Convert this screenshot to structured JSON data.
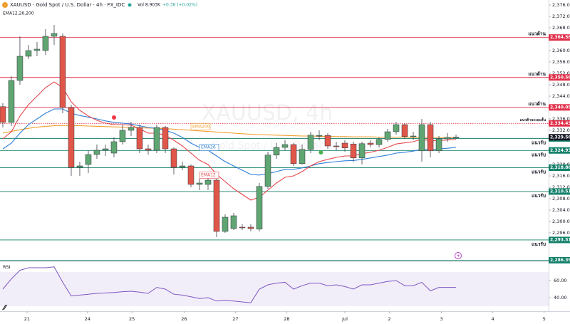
{
  "header": {
    "symbol": "XAUUSD · Gold Spot / U.S. Dollar · 4h · FX_IDC",
    "volume": "Vol 8.903K",
    "change": "+0.36 (+0.02%)",
    "indicators": "EMA12,26,200",
    "watermark": "XAUUSD, 4h",
    "watermark_sub": "Gold Spot / U.S. Dollar"
  },
  "chart_data": [
    {
      "type": "candlestick",
      "x": [
        0,
        1,
        2,
        3,
        4,
        5,
        6,
        7,
        8,
        9,
        10,
        11,
        12,
        13,
        14,
        15,
        16,
        17,
        18,
        19,
        20,
        21,
        22,
        23,
        24,
        25,
        26,
        27,
        28,
        29,
        30,
        31,
        32,
        33,
        34,
        35,
        36,
        37,
        38,
        39,
        40,
        41,
        42,
        43,
        44,
        45,
        46,
        47,
        48,
        49,
        50,
        51,
        52,
        53
      ],
      "open": [
        2340.3,
        2334.8,
        2349.5,
        2358,
        2360,
        2360,
        2365,
        2365,
        2340,
        2319,
        2320,
        2323.5,
        2325,
        2324,
        2328,
        2332,
        2333,
        2325.5,
        2325,
        2333,
        2325.5,
        2319,
        2319.5,
        2313,
        2313,
        2314.5,
        2296.5,
        2297.5,
        2298,
        2298,
        2297.3,
        2312.3,
        2323.3,
        2326,
        2327,
        2320.3,
        2325.3,
        2330,
        2330.2,
        2326.5,
        2327.5,
        2327.2,
        2322.3,
        2327.5,
        2327,
        2328.8,
        2331.5,
        2334,
        2329.8,
        2324.8,
        2334,
        2324.8,
        2329,
        2329.5
      ],
      "high": [
        2341.5,
        2351,
        2365,
        2362,
        2363,
        2367.5,
        2369,
        2366,
        2341,
        2321,
        2325,
        2327,
        2327,
        2329.5,
        2334,
        2335,
        2334,
        2327,
        2334,
        2333.5,
        2326,
        2321,
        2320,
        2315,
        2317,
        2315,
        2302.5,
        2303,
        2299,
        2299,
        2313.5,
        2324.5,
        2327.5,
        2328.5,
        2327.5,
        2327,
        2331.5,
        2332,
        2331,
        2328,
        2328.5,
        2328,
        2328,
        2328.5,
        2329.5,
        2332.5,
        2335,
        2334.5,
        2331.5,
        2336,
        2335,
        2330,
        2331,
        2330.5
      ],
      "low": [
        2333,
        2333.5,
        2348,
        2357,
        2358,
        2358.5,
        2362,
        2338,
        2316,
        2316,
        2317,
        2322,
        2323,
        2322.5,
        2327,
        2330,
        2324,
        2323.5,
        2324,
        2324,
        2316.5,
        2318,
        2312,
        2311,
        2311,
        2294.5,
        2296,
        2297,
        2297,
        2296.5,
        2296.5,
        2311.5,
        2322,
        2325,
        2319.5,
        2320,
        2324,
        2328.5,
        2325.5,
        2325,
        2324.5,
        2321,
        2320,
        2326,
        2326,
        2328,
        2330.5,
        2329,
        2328.5,
        2321,
        2322.5,
        2324,
        2328,
        2329
      ],
      "close": [
        2334.8,
        2349.5,
        2358,
        2360,
        2360.5,
        2365,
        2366,
        2340,
        2319,
        2319.5,
        2323.5,
        2325,
        2325.5,
        2328,
        2332,
        2333,
        2325.5,
        2325,
        2333,
        2325.5,
        2319,
        2319.5,
        2313,
        2313.5,
        2314.5,
        2296.5,
        2301.5,
        2302,
        2297.8,
        2297.5,
        2312.3,
        2323.3,
        2326,
        2327,
        2320.3,
        2325.3,
        2330.3,
        2330.2,
        2326.5,
        2326.3,
        2325.8,
        2322.3,
        2327.3,
        2327,
        2328.8,
        2331.5,
        2334,
        2329.8,
        2330,
        2334,
        2324.8,
        2329,
        2329.5,
        2329.56
      ],
      "up_color": "#5fa672",
      "down_color": "#e0574a",
      "series": [
        {
          "name": "EMA200",
          "color": "#f0a030",
          "values": [
            2331,
            2331.6,
            2332.2,
            2332.7,
            2333.1,
            2333.4,
            2333.6,
            2333.7,
            2333.7,
            2333.6,
            2333.5,
            2333.4,
            2333.3,
            2333.2,
            2333.1,
            2333,
            2332.9,
            2332.8,
            2332.7,
            2332.6,
            2332.4,
            2332.2,
            2332,
            2331.8,
            2331.6,
            2331.4,
            2331.2,
            2331,
            2330.8,
            2330.6,
            2330.5,
            2330.4,
            2330.3,
            2330.2,
            2330.1,
            2330,
            2330,
            2329.9,
            2329.9,
            2329.8,
            2329.8,
            2329.7,
            2329.7,
            2329.7,
            2329.6,
            2329.6,
            2329.6,
            2329.6,
            2329.5,
            2329.5,
            2329.5,
            2329.5,
            2329.4,
            2329.4
          ]
        },
        {
          "name": "EMA26",
          "color": "#2f7fd6",
          "values": [
            2325.5,
            2327.5,
            2331,
            2334,
            2336,
            2338,
            2339.5,
            2339.5,
            2338,
            2337.2,
            2336.6,
            2336,
            2335.3,
            2334.8,
            2334.5,
            2334.2,
            2333.6,
            2333,
            2332.6,
            2332,
            2331,
            2329.5,
            2327.5,
            2326,
            2325,
            2323,
            2321,
            2319.5,
            2318,
            2316.5,
            2316.3,
            2316.8,
            2317.5,
            2318.3,
            2318.3,
            2318.8,
            2319.5,
            2320.3,
            2320.7,
            2321,
            2321.3,
            2321.4,
            2321.8,
            2322.3,
            2322.8,
            2323.3,
            2324,
            2324.3,
            2324.7,
            2325.3,
            2325.2,
            2325.5,
            2325.7,
            2326
          ]
        },
        {
          "name": "EMA12",
          "color": "#e5484d",
          "values": [
            2329,
            2331.5,
            2337,
            2341,
            2344,
            2347,
            2349,
            2347,
            2342,
            2339,
            2337,
            2335.5,
            2334.5,
            2334,
            2334,
            2333.8,
            2332.5,
            2331,
            2331,
            2330.3,
            2328.5,
            2326.5,
            2324,
            2321.5,
            2320,
            2316.5,
            2314,
            2311.5,
            2309.5,
            2307.5,
            2308.5,
            2311,
            2313.5,
            2315.5,
            2316,
            2317.5,
            2319.5,
            2321,
            2321.8,
            2322.5,
            2323,
            2323,
            2323.8,
            2324.3,
            2325,
            2326,
            2327.2,
            2327.6,
            2328,
            2328.9,
            2328.3,
            2328.4,
            2328.6,
            2328.8
          ]
        }
      ],
      "levels": [
        {
          "value": 2364.58,
          "label": "2,364.58",
          "text": "แนวต้าน",
          "color": "#e0304a"
        },
        {
          "value": 2350.56,
          "label": "2,350.56",
          "text": "แนวต้าน",
          "color": "#e0304a"
        },
        {
          "value": 2340.05,
          "label": "2,340.05",
          "text": "แนวต้าน",
          "color": "#e0304a"
        },
        {
          "value": 2334.43,
          "label": "2,334.43",
          "text": "แนวต้านระยะสั้น",
          "color": "#e0304a",
          "style": "dotted"
        },
        {
          "value": 2329.15,
          "label": "2,329.15",
          "text": "แนวรับ",
          "color": "#13806a"
        },
        {
          "value": 2324.93,
          "label": "2,324.93",
          "text": "แนวรับ",
          "color": "#13806a"
        },
        {
          "value": 2318.86,
          "label": "2,318.86",
          "text": "แนวรับ",
          "color": "#13806a"
        },
        {
          "value": 2310.51,
          "label": "2,310.51",
          "text": "แนวรับ",
          "color": "#13806a"
        },
        {
          "value": 2293.51,
          "label": "2,293.51",
          "text": "แนวรับ",
          "color": "#13806a"
        },
        {
          "value": 2286.39,
          "label": "2,286.39",
          "color": "#13806a"
        }
      ],
      "last": {
        "value": 2329.56,
        "label": "2,329.56",
        "color": "#131722"
      },
      "markers": [
        {
          "x": 13,
          "y": 2336.5,
          "color": "#f23645"
        },
        {
          "x": 37.2,
          "y": 2324.25,
          "color": "#4caf50"
        }
      ],
      "xlim": [
        -0.33,
        63.83
      ],
      "ylim": [
        2286,
        2377.75
      ],
      "yticks": [
        {
          "value": 2376,
          "label": "2,376.00"
        },
        {
          "value": 2372,
          "label": "2,372.00"
        },
        {
          "value": 2368,
          "label": "2,368.00"
        },
        {
          "value": 2360,
          "label": "2,360.00"
        },
        {
          "value": 2356,
          "label": "2,356.00"
        },
        {
          "value": 2352,
          "label": "2,352.00"
        },
        {
          "value": 2348,
          "label": "2,348.00"
        },
        {
          "value": 2344,
          "label": "2,344.00"
        },
        {
          "value": 2336,
          "label": "2,336.00"
        },
        {
          "value": 2332,
          "label": "2,332.00"
        },
        {
          "value": 2320,
          "label": "2,320.00"
        },
        {
          "value": 2316,
          "label": "2,316.00"
        },
        {
          "value": 2312,
          "label": "2,312.00"
        },
        {
          "value": 2308,
          "label": "2,308.00"
        },
        {
          "value": 2304,
          "label": "2,304.00"
        },
        {
          "value": 2300,
          "label": "2,300.00"
        },
        {
          "value": 2296,
          "label": "2,296.00"
        }
      ],
      "xticks": [
        {
          "value": 2.83,
          "label": "21"
        },
        {
          "value": 9.9,
          "label": "24"
        },
        {
          "value": 15.1,
          "label": "25"
        },
        {
          "value": 21.2,
          "label": "26"
        },
        {
          "value": 27.2,
          "label": "27"
        },
        {
          "value": 33.2,
          "label": "28"
        },
        {
          "value": 40,
          "label": "Jul"
        },
        {
          "value": 45.2,
          "label": "2"
        },
        {
          "value": 51.3,
          "label": "3"
        },
        {
          "value": 57.3,
          "label": "4"
        },
        {
          "value": 63.3,
          "label": "5"
        }
      ]
    },
    {
      "type": "line",
      "title": "RSI",
      "color": "#7e57c2",
      "values": [
        50,
        62,
        72,
        75,
        75,
        75,
        76,
        58,
        42,
        43,
        44,
        45,
        45.5,
        46,
        47,
        47.5,
        46.5,
        45,
        52,
        50,
        44,
        43,
        41,
        39,
        40,
        36,
        37,
        36,
        35,
        34,
        50,
        55,
        57,
        58,
        50,
        54,
        57,
        57,
        54,
        55,
        53,
        50,
        55,
        55,
        57,
        59,
        60,
        54,
        54,
        58,
        48,
        52,
        52,
        52
      ],
      "band": [
        30,
        70
      ],
      "ylim": [
        24.2,
        81.7
      ],
      "yticks": [
        {
          "value": 60,
          "label": "60.00"
        },
        {
          "value": 40,
          "label": "40.00"
        }
      ]
    }
  ]
}
